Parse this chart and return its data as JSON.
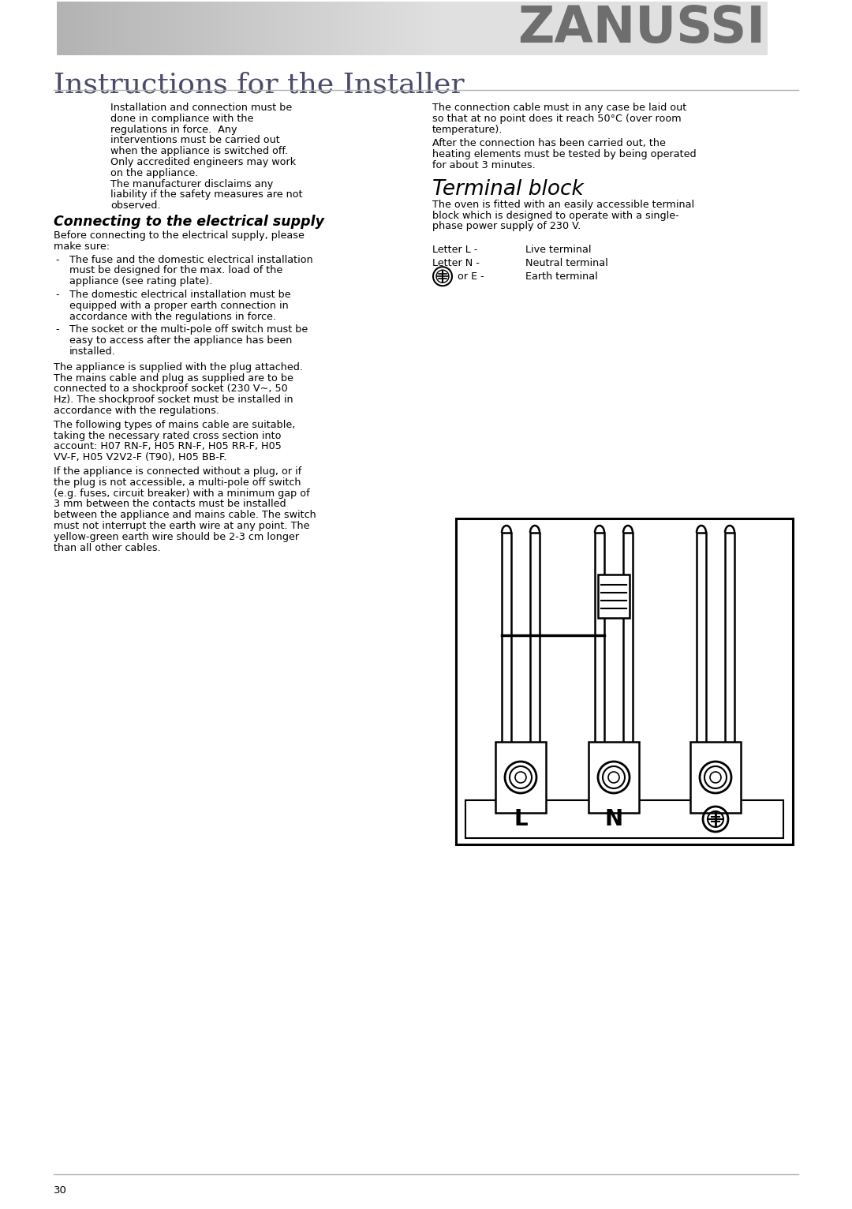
{
  "page_bg": "#ffffff",
  "header_text": "ZANUSSI",
  "header_text_color": "#7a7a7a",
  "title": "Instructions for the Installer",
  "title_color": "#4a4a6a",
  "section1_heading": "Connecting to the electrical supply",
  "terminal_heading": "Terminal block",
  "footer_text": "30",
  "body_color": "#000000",
  "para1_lines": [
    "Installation and connection must be",
    "done in compliance with the",
    "regulations in force.  Any",
    "interventions must be carried out",
    "when the appliance is switched off.",
    "Only accredited engineers may work",
    "on the appliance.",
    "The manufacturer disclaims any",
    "liability if the safety measures are not",
    "observed."
  ],
  "before_lines": [
    "Before connecting to the electrical supply, please",
    "make sure:"
  ],
  "bullets": [
    [
      "The fuse and the domestic electrical installation",
      "must be designed for the max. load of the",
      "appliance (see rating plate)."
    ],
    [
      "The domestic electrical installation must be",
      "equipped with a proper earth connection in",
      "accordance with the regulations in force."
    ],
    [
      "The socket or the multi-pole off switch must be",
      "easy to access after the appliance has been",
      "installed."
    ]
  ],
  "para2_lines": [
    "The appliance is supplied with the plug attached.",
    "The mains cable and plug as supplied are to be",
    "connected to a shockproof socket (230 V~, 50",
    "Hz). The shockproof socket must be installed in",
    "accordance with the regulations."
  ],
  "para3_lines": [
    "The following types of mains cable are suitable,",
    "taking the necessary rated cross section into",
    "account: H07 RN-F, H05 RN-F, H05 RR-F, H05",
    "VV-F, H05 V2V2-F (T90), H05 BB-F."
  ],
  "para4_lines": [
    "If the appliance is connected without a plug, or if",
    "the plug is not accessible, a multi-pole off switch",
    "(e.g. fuses, circuit breaker) with a minimum gap of",
    "3 mm between the contacts must be installed",
    "between the appliance and mains cable. The switch",
    "must not interrupt the earth wire at any point. The",
    "yellow-green earth wire should be 2-3 cm longer",
    "than all other cables."
  ],
  "rpara1_lines": [
    "The connection cable must in any case be laid out",
    "so that at no point does it reach 50°C (over room",
    "temperature)."
  ],
  "rpara2_lines": [
    "After the connection has been carried out, the",
    "heating elements must be tested by being operated",
    "for about 3 minutes."
  ],
  "tpara_lines": [
    "The oven is fitted with an easily accessible terminal",
    "block which is designed to operate with a single-",
    "phase power supply of 230 V."
  ]
}
